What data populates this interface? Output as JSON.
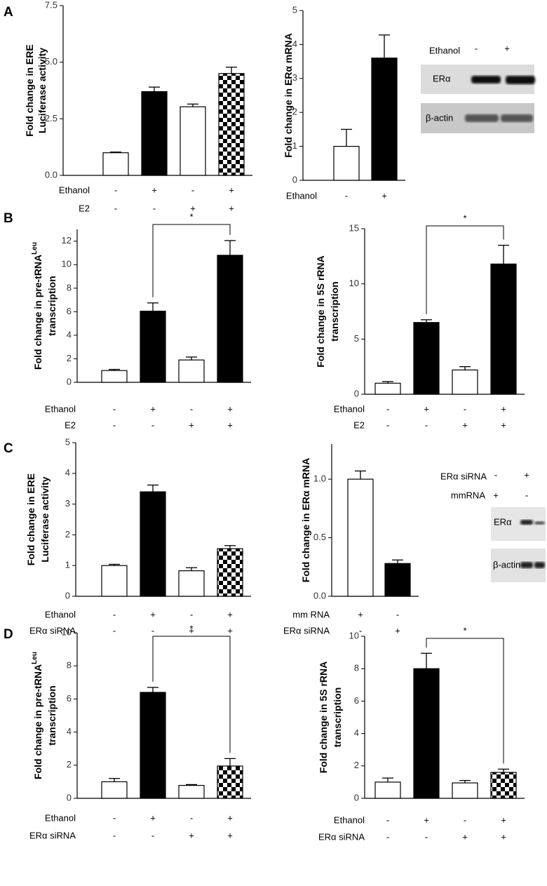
{
  "chart_data": [
    {
      "type": "bar",
      "panel": "A",
      "ylabel": [
        "Fold change in ERE",
        "Luciferase activity"
      ],
      "ylim": [
        0,
        7.5
      ],
      "yticks": [
        {
          "value": 0,
          "label": "0.0"
        },
        {
          "value": 2.5,
          "label": "2.5"
        },
        {
          "value": 5,
          "label": "5.0"
        },
        {
          "value": 7.5,
          "label": "7.5"
        }
      ],
      "series": [
        {
          "values": [
            1.0,
            3.7,
            3.03,
            4.5
          ],
          "errors": [
            0.03,
            0.2,
            0.12,
            0.28
          ],
          "fills": [
            "white",
            "black",
            "white",
            "checker"
          ]
        }
      ],
      "conditions": [
        {
          "name": "Ethanol",
          "signs": [
            "-",
            "+",
            "-",
            "+"
          ]
        },
        {
          "name": "E2",
          "signs": [
            "-",
            "-",
            "+",
            "+"
          ]
        }
      ]
    },
    {
      "type": "bar",
      "ylabel": [
        "Fold change in ERα  mRNA"
      ],
      "ylim": [
        0,
        5
      ],
      "yticks": [
        0,
        1,
        2,
        3,
        4,
        5
      ],
      "series": [
        {
          "values": [
            1.0,
            3.6
          ],
          "errors": [
            0.5,
            0.68
          ],
          "fills": [
            "white",
            "black"
          ]
        }
      ],
      "conditions": [
        {
          "name": "Ethanol",
          "signs": [
            "-",
            "+"
          ]
        }
      ]
    },
    {
      "type": "bar",
      "panel": "B",
      "ylabel": [
        "Fold change in pre-tRNA",
        "transcription"
      ],
      "ylabel_superscript": "Leu",
      "ylim": [
        0,
        13
      ],
      "yticks": [
        0,
        2,
        4,
        6,
        8,
        10,
        12
      ],
      "series": [
        {
          "values": [
            1.0,
            6.05,
            1.9,
            10.8
          ],
          "errors": [
            0.1,
            0.7,
            0.25,
            1.25
          ],
          "fills": [
            "white",
            "black",
            "white",
            "black"
          ]
        }
      ],
      "conditions": [
        {
          "name": "Ethanol",
          "signs": [
            "-",
            "+",
            "-",
            "+"
          ]
        },
        {
          "name": "E2",
          "signs": [
            "-",
            "-",
            "+",
            "+"
          ]
        }
      ],
      "significance": {
        "from": 1,
        "to": 3,
        "label": "*"
      }
    },
    {
      "type": "bar",
      "ylabel": [
        "Fold change in 5S rRNA",
        "transcription"
      ],
      "ylim": [
        0,
        15
      ],
      "yticks": [
        0,
        5,
        10,
        15
      ],
      "series": [
        {
          "values": [
            1.0,
            6.5,
            2.2,
            11.8
          ],
          "errors": [
            0.15,
            0.25,
            0.3,
            1.7
          ],
          "fills": [
            "white",
            "black",
            "white",
            "black"
          ]
        }
      ],
      "conditions": [
        {
          "name": "Ethanol",
          "signs": [
            "-",
            "+",
            "-",
            "+"
          ]
        },
        {
          "name": "E2",
          "signs": [
            "-",
            "-",
            "+",
            "+"
          ]
        }
      ],
      "significance": {
        "from": 1,
        "to": 3,
        "label": "*"
      }
    },
    {
      "type": "bar",
      "panel": "C",
      "ylabel": [
        "Fold change in ERE",
        "Luciferase activity"
      ],
      "ylim": [
        0,
        5
      ],
      "yticks": [
        0,
        1,
        2,
        3,
        4,
        5
      ],
      "series": [
        {
          "values": [
            1.0,
            3.4,
            0.83,
            1.55
          ],
          "errors": [
            0.04,
            0.22,
            0.1,
            0.1
          ],
          "fills": [
            "white",
            "black",
            "white",
            "checker"
          ]
        }
      ],
      "conditions": [
        {
          "name": "Ethanol",
          "signs": [
            "-",
            "+",
            "-",
            "+"
          ]
        },
        {
          "name": "ERα siRNA",
          "signs": [
            "-",
            "-",
            "+",
            "+"
          ]
        }
      ]
    },
    {
      "type": "bar",
      "ylabel": [
        "Fold change in ERα  mRNA"
      ],
      "ylim": [
        0,
        1.3
      ],
      "yticks": [
        {
          "value": 0,
          "label": "0.0"
        },
        {
          "value": 0.5,
          "label": "0.5"
        },
        {
          "value": 1,
          "label": "1.0"
        }
      ],
      "series": [
        {
          "values": [
            1.0,
            0.28
          ],
          "errors": [
            0.07,
            0.03
          ],
          "fills": [
            "white",
            "black"
          ]
        }
      ],
      "conditions": [
        {
          "name": "mm RNA",
          "signs": [
            "+",
            "-"
          ]
        },
        {
          "name": "ERα siRNA",
          "signs": [
            "-",
            "+"
          ]
        }
      ]
    },
    {
      "type": "bar",
      "panel": "D",
      "ylabel": [
        "Fold change in pre-tRNA",
        "transcription"
      ],
      "ylabel_superscript": "Leu",
      "ylim": [
        0,
        10
      ],
      "yticks": [
        0,
        2,
        4,
        6,
        8,
        10
      ],
      "series": [
        {
          "values": [
            1.0,
            6.4,
            0.78,
            1.95
          ],
          "errors": [
            0.2,
            0.3,
            0.05,
            0.45
          ],
          "fills": [
            "white",
            "black",
            "white",
            "checker"
          ]
        }
      ],
      "conditions": [
        {
          "name": "Ethanol",
          "signs": [
            "-",
            "+",
            "-",
            "+"
          ]
        },
        {
          "name": "ERα siRNA",
          "signs": [
            "-",
            "-",
            "+",
            "+"
          ]
        }
      ],
      "significance": {
        "from": 1,
        "to": 3,
        "label": "*"
      }
    },
    {
      "type": "bar",
      "ylabel": [
        "Fold change in 5S rRNA",
        "transcription"
      ],
      "ylim": [
        0,
        10
      ],
      "yticks": [
        0,
        2,
        4,
        6,
        8,
        10
      ],
      "series": [
        {
          "values": [
            1.0,
            8.0,
            0.95,
            1.6
          ],
          "errors": [
            0.25,
            0.95,
            0.15,
            0.2
          ],
          "fills": [
            "white",
            "black",
            "white",
            "checker"
          ]
        }
      ],
      "conditions": [
        {
          "name": "Ethanol",
          "signs": [
            "-",
            "+",
            "-",
            "+"
          ]
        },
        {
          "name": "ERα siRNA",
          "signs": [
            "-",
            "-",
            "+",
            "+"
          ]
        }
      ],
      "significance": {
        "from": 1,
        "to": 3,
        "label": "*"
      }
    }
  ],
  "blots": [
    {
      "header": [
        {
          "name": "Ethanol",
          "signs": [
            "-",
            "+"
          ]
        }
      ],
      "bands": [
        "ERα",
        "β-actin"
      ]
    },
    {
      "header": [
        {
          "name": "ERα siRNA",
          "signs": [
            "-",
            "+"
          ]
        },
        {
          "name": "mmRNA",
          "signs": [
            "+",
            "-"
          ]
        }
      ],
      "bands": [
        "ERα",
        "β-actin"
      ]
    }
  ]
}
